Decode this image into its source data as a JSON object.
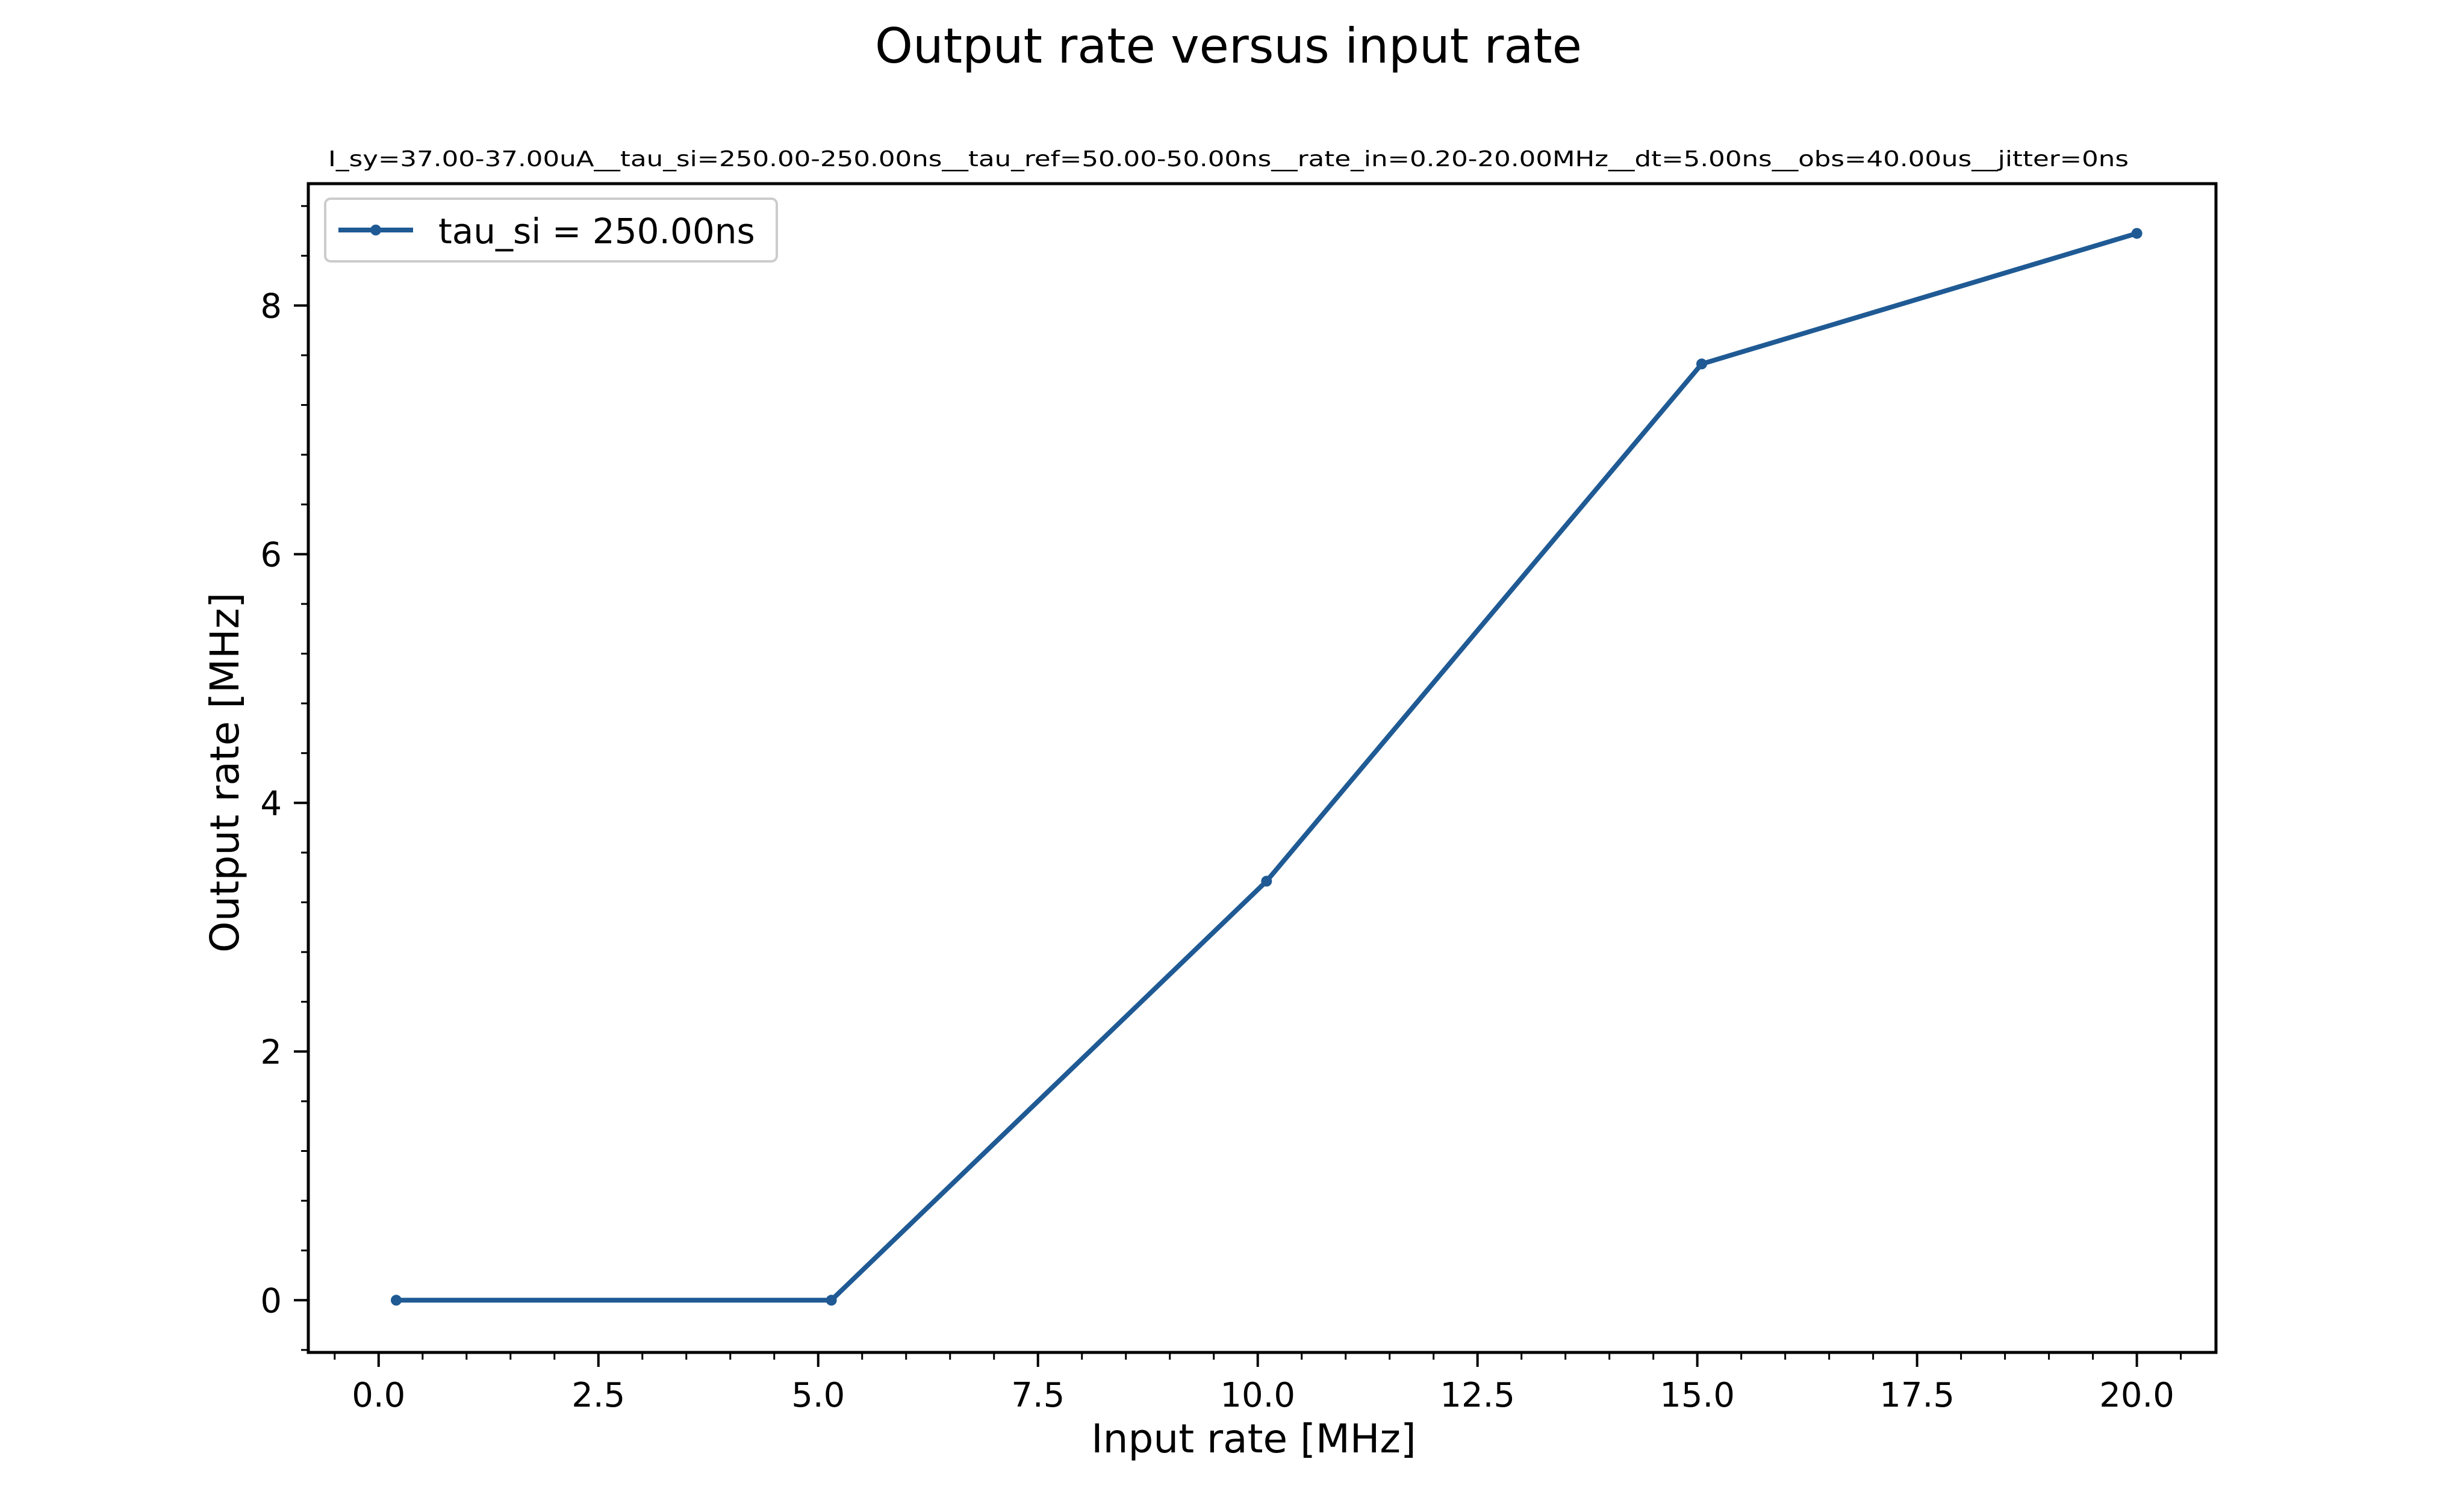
{
  "chart_data": {
    "type": "line",
    "title": "Output rate versus input rate",
    "subtitle": "I_sy=37.00-37.00uA__tau_si=250.00-250.00ns__tau_ref=50.00-50.00ns__rate_in=0.20-20.00MHz__dt=5.00ns__obs=40.00us__jitter=0ns",
    "xlabel": "Input rate [MHz]",
    "ylabel": "Output rate [MHz]",
    "xlim": [
      -0.8,
      20.9
    ],
    "ylim": [
      -0.42,
      8.98
    ],
    "x_ticks": [
      0.0,
      2.5,
      5.0,
      7.5,
      10.0,
      12.5,
      15.0,
      17.5,
      20.0
    ],
    "x_tick_labels": [
      "0.0",
      "2.5",
      "5.0",
      "7.5",
      "10.0",
      "12.5",
      "15.0",
      "17.5",
      "20.0"
    ],
    "y_ticks": [
      0,
      2,
      4,
      6,
      8
    ],
    "y_tick_labels": [
      "0",
      "2",
      "4",
      "6",
      "8"
    ],
    "grid": false,
    "legend_position": "top-left",
    "series": [
      {
        "name": "tau_si = 250.00ns",
        "color": "#1f5a94",
        "marker": "point",
        "x": [
          0.2,
          5.15,
          10.1,
          15.05,
          20.0
        ],
        "y": [
          0.0,
          0.0,
          3.37,
          7.53,
          8.58
        ]
      }
    ]
  }
}
